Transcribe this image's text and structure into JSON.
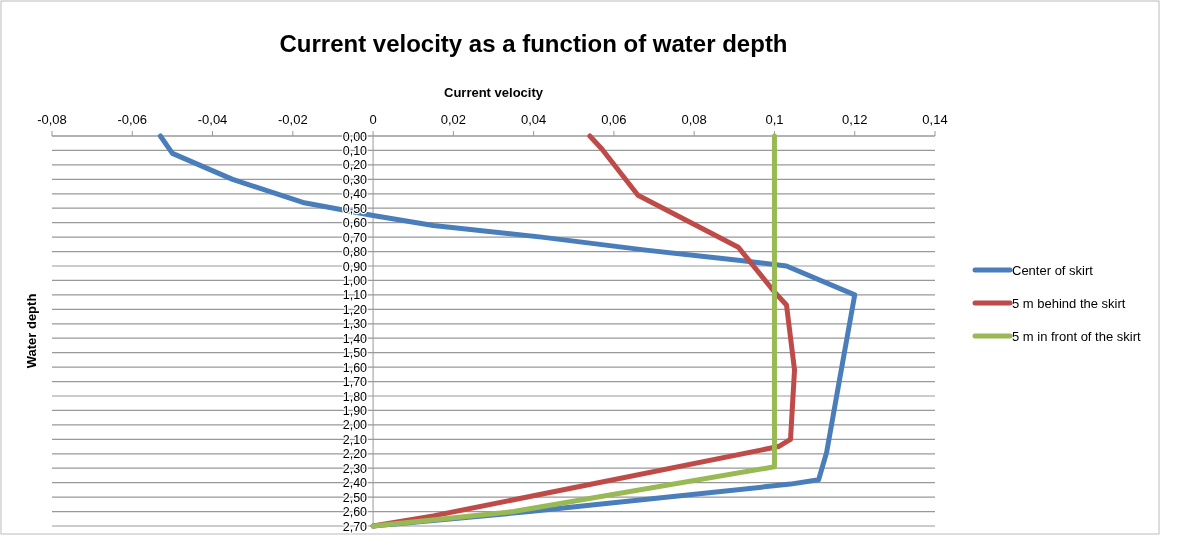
{
  "chart_data": {
    "type": "line",
    "title": "Current velocity as a function of water depth",
    "xlabel": "Current velocity",
    "ylabel": "Water depth",
    "xlim": [
      -0.08,
      0.14
    ],
    "xticks": [
      {
        "value": -0.08,
        "label": "-0,08"
      },
      {
        "value": -0.06,
        "label": "-0,06"
      },
      {
        "value": -0.04,
        "label": "-0,04"
      },
      {
        "value": -0.02,
        "label": "-0,02"
      },
      0,
      {
        "value": 0.02,
        "label": "0,02"
      },
      {
        "value": 0.04,
        "label": "0,04"
      },
      {
        "value": 0.06,
        "label": "0,06"
      },
      {
        "value": 0.08,
        "label": "0,08"
      },
      {
        "value": 0.1,
        "label": "0,1"
      },
      {
        "value": 0.12,
        "label": "0,12"
      },
      {
        "value": 0.14,
        "label": "0,14"
      }
    ],
    "ylim": [
      2.7,
      0
    ],
    "yticks": [
      {
        "value": 0,
        "label": "0,00"
      },
      {
        "value": 0.1,
        "label": "0,10"
      },
      {
        "value": 0.2,
        "label": "0,20"
      },
      {
        "value": 0.3,
        "label": "0,30"
      },
      {
        "value": 0.4,
        "label": "0,40"
      },
      {
        "value": 0.5,
        "label": "0,50"
      },
      {
        "value": 0.6,
        "label": "0,60"
      },
      {
        "value": 0.7,
        "label": "0,70"
      },
      {
        "value": 0.8,
        "label": "0,80"
      },
      {
        "value": 0.9,
        "label": "0,90"
      },
      {
        "value": 1.0,
        "label": "1,00"
      },
      {
        "value": 1.1,
        "label": "1,10"
      },
      {
        "value": 1.2,
        "label": "1,20"
      },
      {
        "value": 1.3,
        "label": "1,30"
      },
      {
        "value": 1.4,
        "label": "1,40"
      },
      {
        "value": 1.5,
        "label": "1,50"
      },
      {
        "value": 1.6,
        "label": "1,60"
      },
      {
        "value": 1.7,
        "label": "1,70"
      },
      {
        "value": 1.8,
        "label": "1,80"
      },
      {
        "value": 1.9,
        "label": "1,90"
      },
      {
        "value": 2.0,
        "label": "2,00"
      },
      {
        "value": 2.1,
        "label": "2,10"
      },
      {
        "value": 2.2,
        "label": "2,20"
      },
      {
        "value": 2.3,
        "label": "2,30"
      },
      {
        "value": 2.4,
        "label": "2,40"
      },
      {
        "value": 2.5,
        "label": "2,50"
      },
      {
        "value": 2.6,
        "label": "2,60"
      },
      {
        "value": 2.7,
        "label": "2,70"
      }
    ],
    "grid": "y",
    "legend": "right",
    "marker": "none",
    "line_style": "solid",
    "series": [
      {
        "name": "Center of skirt",
        "color": "#4a7ebb",
        "x": [
          -0.053,
          -0.05,
          -0.035,
          -0.0175,
          0,
          0.015,
          0.042,
          0.068,
          0.091,
          0.103,
          0.12,
          0.118,
          0.116,
          0.113,
          0.111,
          0.104,
          0.039,
          0
        ],
        "values": [
          0,
          0.12,
          0.3,
          0.46,
          0.55,
          0.62,
          0.7,
          0.79,
          0.86,
          0.9,
          1.1,
          1.41,
          1.72,
          2.19,
          2.38,
          2.41,
          2.6,
          2.7
        ]
      },
      {
        "name": "5 m behind the skirt",
        "color": "#be4b48",
        "x": [
          0.054,
          0.057,
          0.066,
          0.091,
          0.1,
          0.103,
          0.105,
          0.104,
          0.101,
          0.015,
          0
        ],
        "values": [
          0,
          0.09,
          0.41,
          0.77,
          1.08,
          1.17,
          1.62,
          2.1,
          2.15,
          2.63,
          2.7
        ]
      },
      {
        "name": "5 m in front of the skirt",
        "color": "#98b954",
        "x": [
          0.1,
          0.1,
          0.1,
          0.035,
          0
        ],
        "values": [
          0,
          1.1,
          2.29,
          2.6,
          2.7
        ]
      }
    ]
  }
}
